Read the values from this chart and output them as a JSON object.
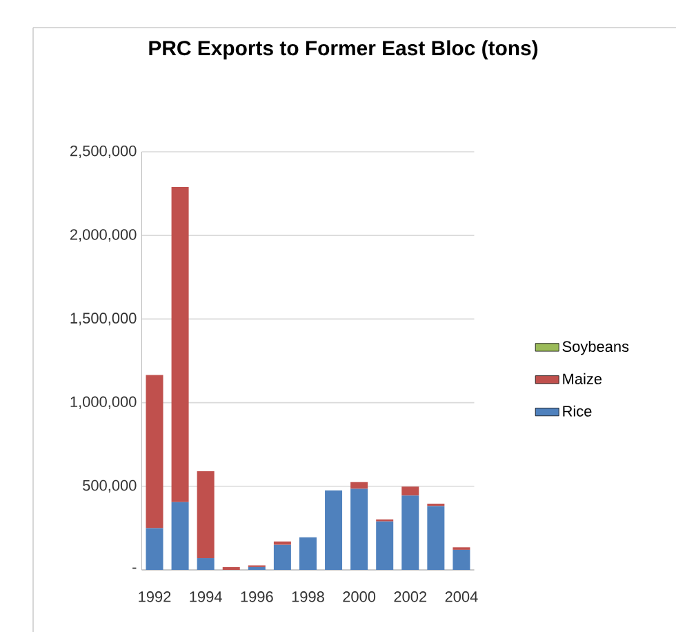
{
  "chart_data": {
    "type": "bar",
    "stacked": true,
    "title": "PRC Exports to Former East Bloc (tons)",
    "categories": [
      "1992",
      null,
      "1994",
      null,
      "1996",
      null,
      "1998",
      null,
      "2000",
      null,
      "2002",
      null,
      "2004"
    ],
    "series": [
      {
        "name": "Rice",
        "color": "#4f81bd",
        "values": [
          250000,
          405000,
          70000,
          null,
          17000,
          150000,
          195000,
          475000,
          485000,
          290000,
          445000,
          382000,
          120000
        ]
      },
      {
        "name": "Maize",
        "color": "#c0504d",
        "values": [
          915000,
          1885000,
          520000,
          17000,
          10000,
          20000,
          0,
          0,
          40000,
          12000,
          53000,
          14000,
          15000
        ]
      },
      {
        "name": "Soybeans",
        "color": "#9bbb59",
        "values": [
          0,
          0,
          0,
          0,
          0,
          0,
          0,
          0,
          0,
          0,
          0,
          0,
          0
        ]
      }
    ],
    "ylim": [
      0,
      2500000
    ],
    "yticks": [
      {
        "value": 0,
        "label": "-"
      },
      {
        "value": 500000,
        "label": "500,000"
      },
      {
        "value": 1000000,
        "label": "1,000,000"
      },
      {
        "value": 1500000,
        "label": "1,500,000"
      },
      {
        "value": 2000000,
        "label": "2,000,000"
      },
      {
        "value": 2500000,
        "label": "2,500,000"
      }
    ],
    "grid": "y",
    "legend": "right"
  }
}
